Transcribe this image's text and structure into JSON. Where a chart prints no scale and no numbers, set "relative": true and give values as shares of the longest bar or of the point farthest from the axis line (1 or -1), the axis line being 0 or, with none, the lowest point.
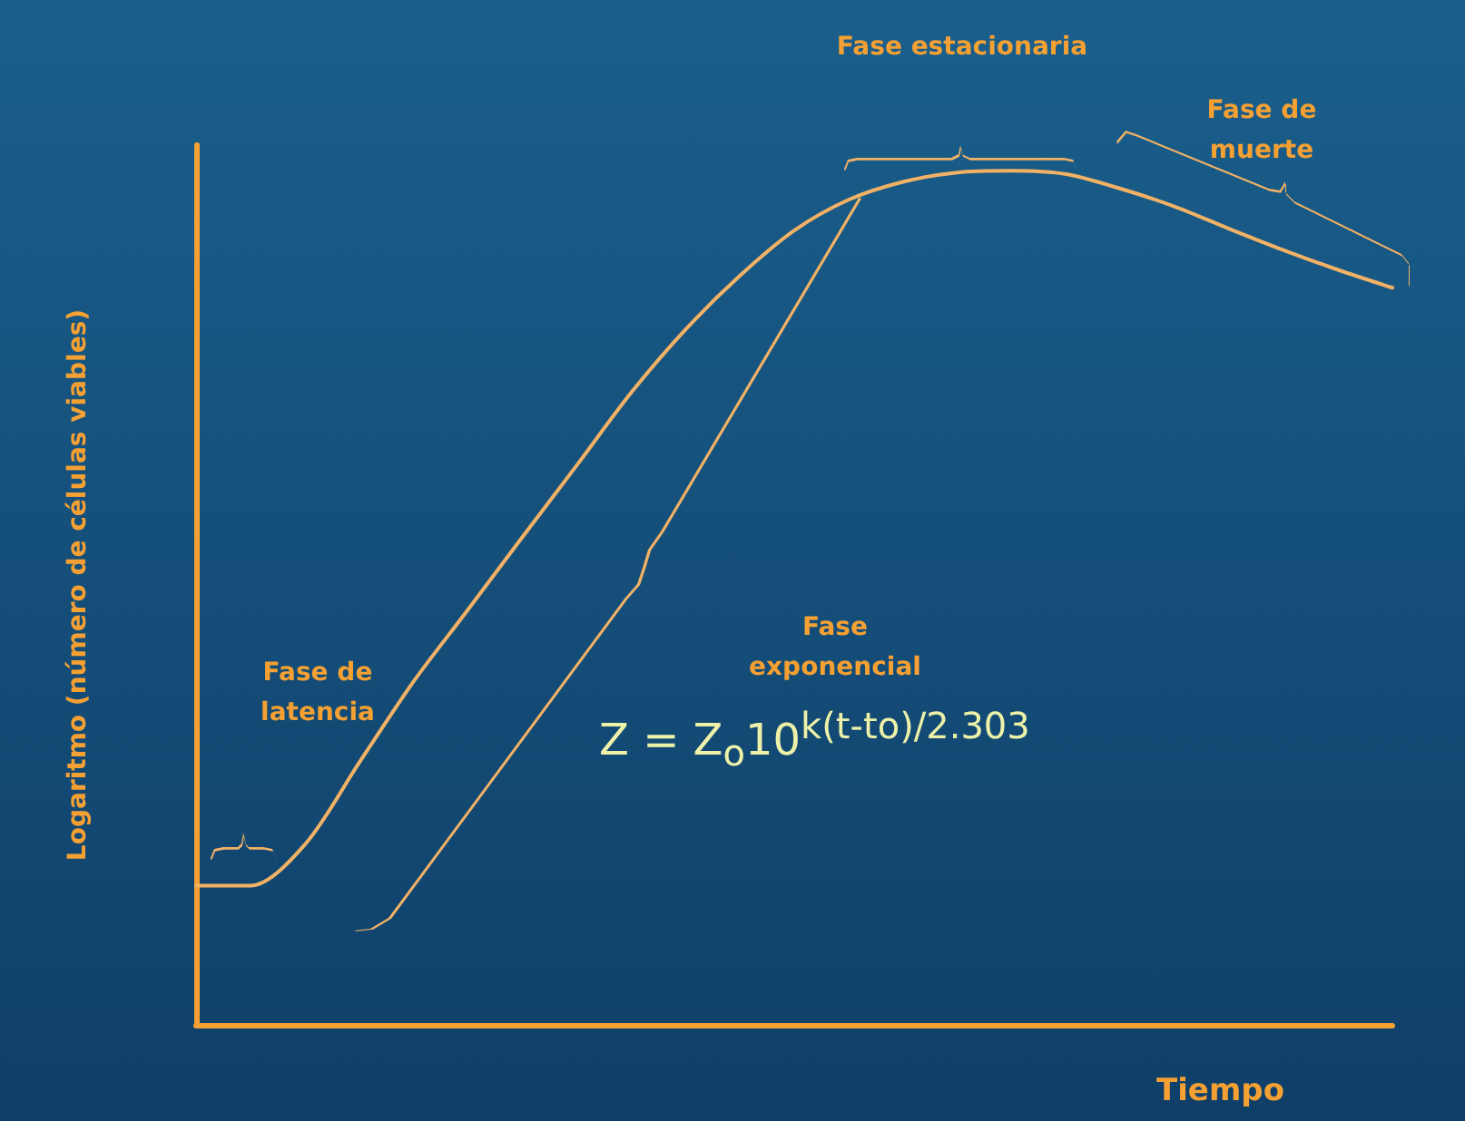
{
  "chart_data": {
    "type": "line",
    "relative": true,
    "xlabel": "Tiempo",
    "ylabel": "Logaritmo (número de células viables)",
    "categories": [
      null,
      null,
      null,
      null,
      null,
      null,
      null,
      null,
      null,
      null,
      null,
      null,
      null,
      null,
      null,
      null,
      null,
      null,
      null,
      null,
      null,
      null,
      null
    ],
    "series": [
      {
        "color": "#f2b266",
        "values": [
          0.163,
          0.163,
          0.211,
          0.307,
          0.402,
          0.486,
          0.571,
          0.655,
          0.74,
          0.814,
          0.877,
          0.93,
          0.966,
          0.987,
          0.998,
          1,
          0.996,
          0.979,
          0.958,
          0.932,
          0.907,
          0.884,
          0.863
        ]
      }
    ],
    "annotations": [
      "Fase de latencia",
      "Fase exponencial",
      "Fase estacionaria",
      "Fase de muerte",
      "Z = Z$_{o}$10$^{k(t-to)/2.303}$"
    ],
    "grid": false,
    "marker": "none",
    "line_style": "solid"
  }
}
